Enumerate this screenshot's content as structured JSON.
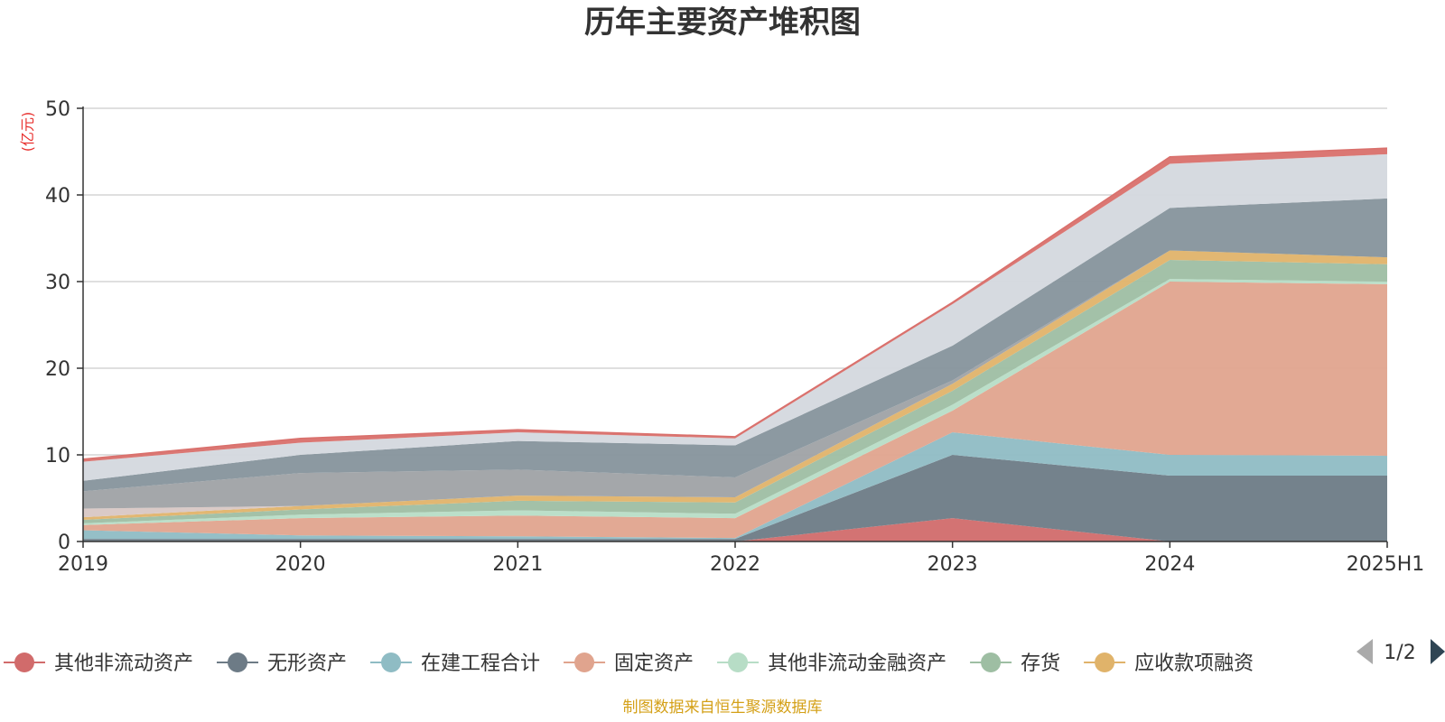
{
  "colors": {
    "title": "#333333",
    "unit": "#e8302e",
    "source": "#d4a017",
    "grid": "#cccccc",
    "axis": "#333333"
  },
  "chart_data": {
    "type": "area",
    "stacked": true,
    "title": "历年主要资产堆积图",
    "unit_label": "(亿元)",
    "x": [
      "2019",
      "2020",
      "2021",
      "2022",
      "2023",
      "2024",
      "2025H1"
    ],
    "ylim": [
      0,
      50
    ],
    "yticks": [
      0,
      10,
      20,
      30,
      40,
      50
    ],
    "grid": true,
    "legend_position": "bottom",
    "series": [
      {
        "name": "其他非流动资产",
        "color": "#d16b6b",
        "values": [
          0,
          0,
          0,
          0,
          2.7,
          0,
          0
        ]
      },
      {
        "name": "无形资产",
        "color": "#6d7b86",
        "values": [
          0.3,
          0.3,
          0.3,
          0.3,
          7.3,
          7.6,
          7.6
        ]
      },
      {
        "name": "在建工程合计",
        "color": "#8fbcc4",
        "values": [
          1.0,
          0.4,
          0.3,
          0.1,
          2.6,
          2.4,
          2.3
        ]
      },
      {
        "name": "固定资产",
        "color": "#e0a48e",
        "values": [
          0.6,
          2.0,
          2.4,
          2.3,
          2.5,
          20.0,
          19.8
        ]
      },
      {
        "name": "其他非流动金融资产",
        "color": "#b7ddc6",
        "values": [
          0.2,
          0.4,
          0.6,
          0.5,
          0.7,
          0.3,
          0.3
        ]
      },
      {
        "name": "存货",
        "color": "#9ebea3",
        "values": [
          0.4,
          0.6,
          1.1,
          1.3,
          1.6,
          2.2,
          2.0
        ]
      },
      {
        "name": "应收款项融资",
        "color": "#e0b36a",
        "values": [
          0.3,
          0.4,
          0.6,
          0.6,
          0.8,
          1.1,
          0.8
        ]
      },
      {
        "name": "",
        "color": "#d8c7c4",
        "values": [
          1.0,
          0,
          0,
          0,
          0,
          0,
          0
        ]
      },
      {
        "name": "",
        "color": "#9fa2a5",
        "values": [
          2.0,
          3.8,
          3.0,
          2.3,
          0.4,
          0,
          0
        ]
      },
      {
        "name": "",
        "color": "#86949c",
        "values": [
          1.2,
          2.1,
          3.3,
          3.7,
          4.0,
          4.9,
          6.8
        ]
      },
      {
        "name": "",
        "color": "#d4d8de",
        "values": [
          2.2,
          1.4,
          1.0,
          0.8,
          4.8,
          5.1,
          5.1
        ]
      },
      {
        "name": "",
        "color": "#d9706c",
        "values": [
          0.3,
          0.5,
          0.3,
          0.2,
          0.2,
          0.8,
          0.7
        ]
      }
    ],
    "legend_page": "1/2",
    "source_text": "制图数据来自恒生聚源数据库"
  }
}
